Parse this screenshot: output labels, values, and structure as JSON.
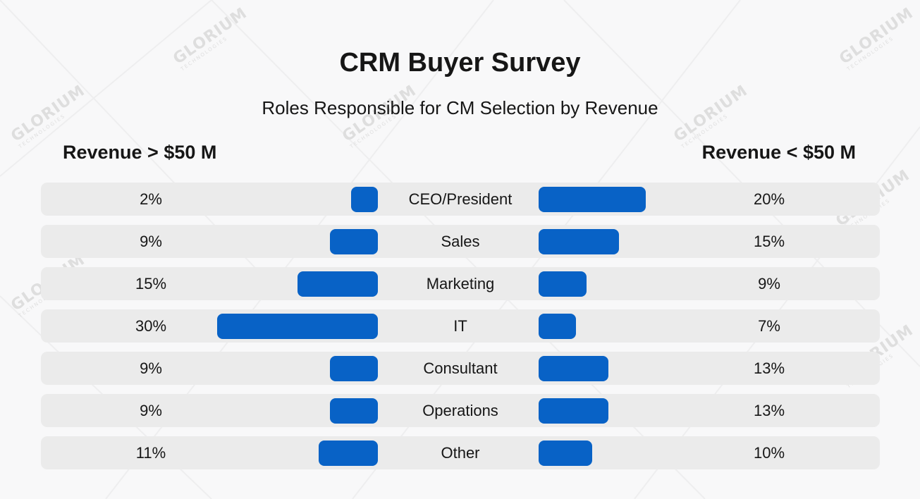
{
  "header": {
    "title": "CRM Buyer Survey",
    "subtitle": "Roles Responsible for CM Selection by Revenue"
  },
  "watermark": {
    "brand": "GLORIUM",
    "tagline": "TECHNOLOGIES"
  },
  "colors": {
    "bar": "#0862c6",
    "row_bg": "#ebebeb",
    "background": "#f8f8f9"
  },
  "chart_data": {
    "type": "bar",
    "title": "CRM Buyer Survey",
    "subtitle": "Roles Responsible for CM Selection by Revenue",
    "categories": [
      "CEO/President",
      "Sales",
      "Marketing",
      "IT",
      "Consultant",
      "Operations",
      "Other"
    ],
    "series": [
      {
        "name": "Revenue > $50 M",
        "values": [
          2,
          9,
          15,
          30,
          9,
          9,
          11
        ],
        "labels": [
          "2%",
          "9%",
          "15%",
          "30%",
          "9%",
          "9%",
          "11%"
        ]
      },
      {
        "name": "Revenue < $50 M",
        "values": [
          20,
          15,
          9,
          7,
          13,
          13,
          10
        ],
        "labels": [
          "20%",
          "15%",
          "9%",
          "7%",
          "13%",
          "13%",
          "10%"
        ]
      }
    ],
    "unit": "%",
    "legend": "top",
    "grid": false
  }
}
